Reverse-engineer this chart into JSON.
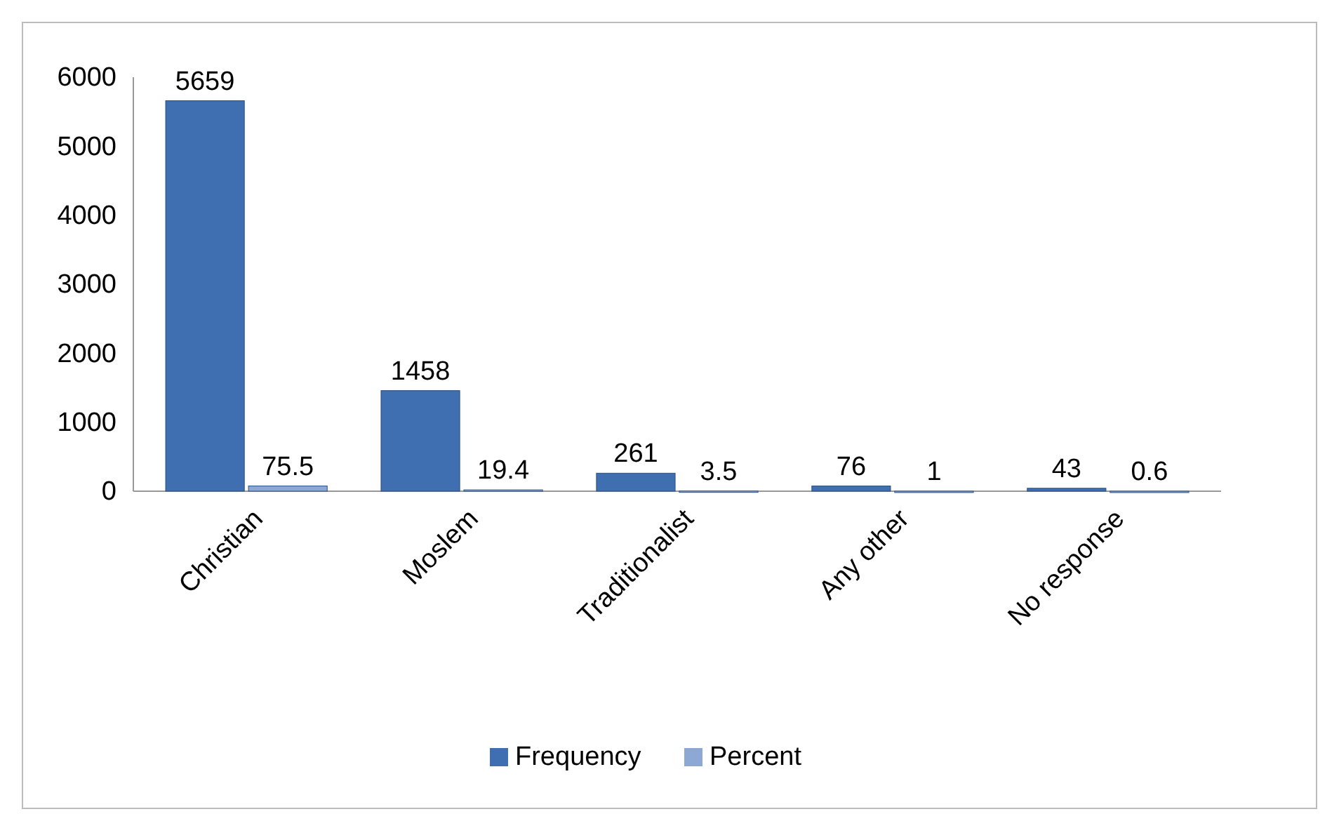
{
  "chart_data": {
    "type": "bar",
    "categories": [
      "Christian",
      "Moslem",
      "Traditionalist",
      "Any other",
      "No response"
    ],
    "series": [
      {
        "name": "Frequency",
        "color": "#3f6fb0",
        "values": [
          5659,
          1458,
          261,
          76,
          43
        ]
      },
      {
        "name": "Percent",
        "color": "#8ea8d6",
        "values": [
          75.5,
          19.4,
          3.5,
          1,
          0.6
        ]
      }
    ],
    "ylim": [
      0,
      6000
    ],
    "yticks": [
      0,
      1000,
      2000,
      3000,
      4000,
      5000,
      6000
    ],
    "grid": false,
    "legend": "bottom",
    "data_labels": true
  }
}
